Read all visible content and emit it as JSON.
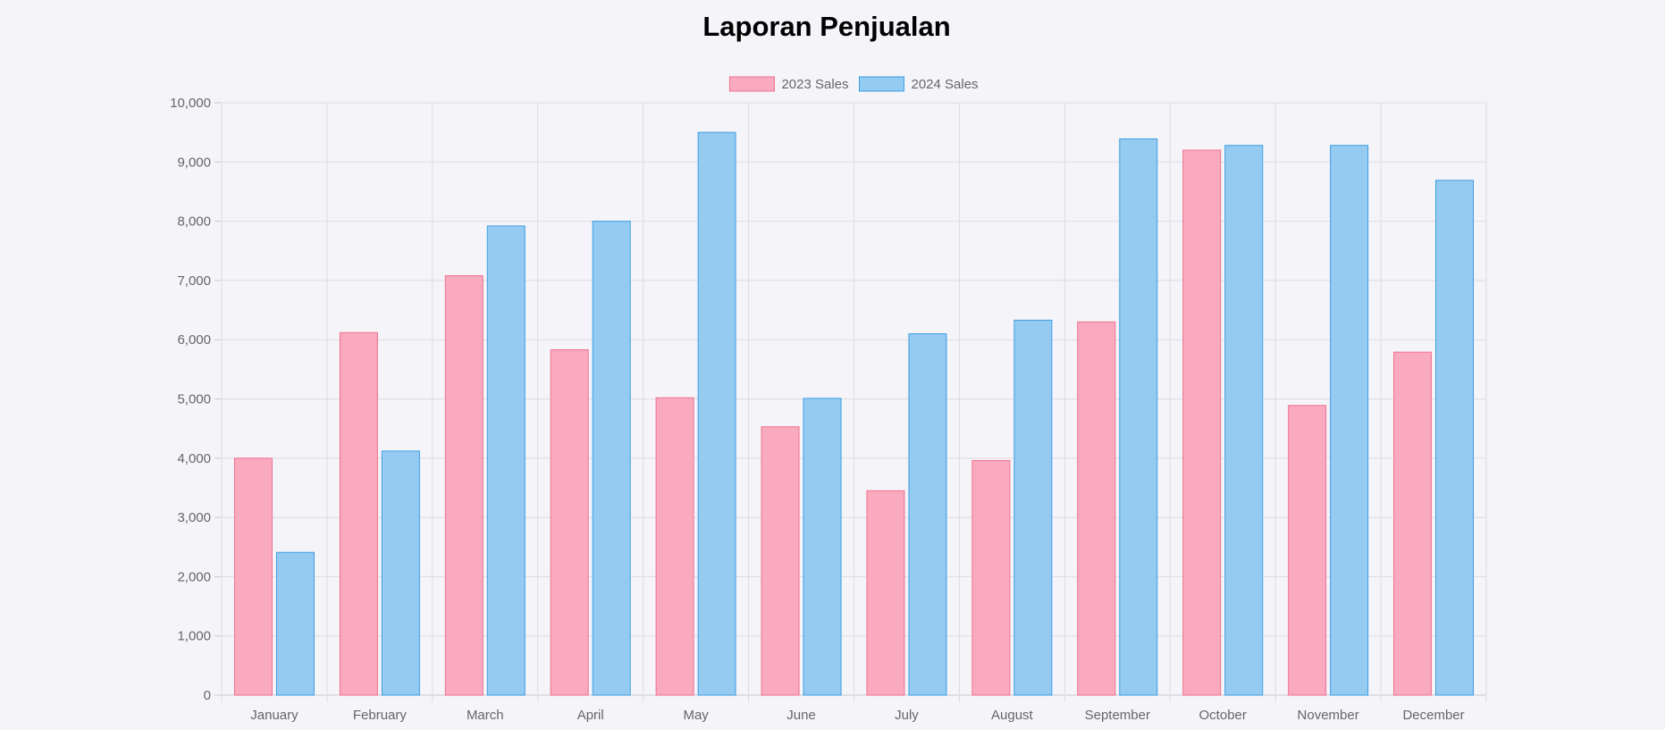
{
  "page": {
    "title": "Laporan Penjualan"
  },
  "chart_data": {
    "type": "bar",
    "title": "",
    "xlabel": "",
    "ylabel": "",
    "ylim": [
      0,
      10000
    ],
    "ytick_step": 1000,
    "grid": true,
    "legend_position": "top",
    "categories": [
      "January",
      "February",
      "March",
      "April",
      "May",
      "June",
      "July",
      "August",
      "September",
      "October",
      "November",
      "December"
    ],
    "yticks": [
      "0",
      "1,000",
      "2,000",
      "3,000",
      "4,000",
      "5,000",
      "6,000",
      "7,000",
      "8,000",
      "9,000",
      "10,000"
    ],
    "series": [
      {
        "name": "2023 Sales",
        "fill": "#f9aabe",
        "stroke": "#f0718e",
        "values": [
          4000,
          6120,
          7080,
          5830,
          5020,
          4530,
          3450,
          3960,
          6300,
          9200,
          4890,
          5790
        ]
      },
      {
        "name": "2024 Sales",
        "fill": "#95caf1",
        "stroke": "#3d9fe3",
        "values": [
          2410,
          4120,
          7920,
          8000,
          9500,
          5010,
          6100,
          6330,
          9390,
          9280,
          9280,
          8690
        ]
      }
    ]
  }
}
